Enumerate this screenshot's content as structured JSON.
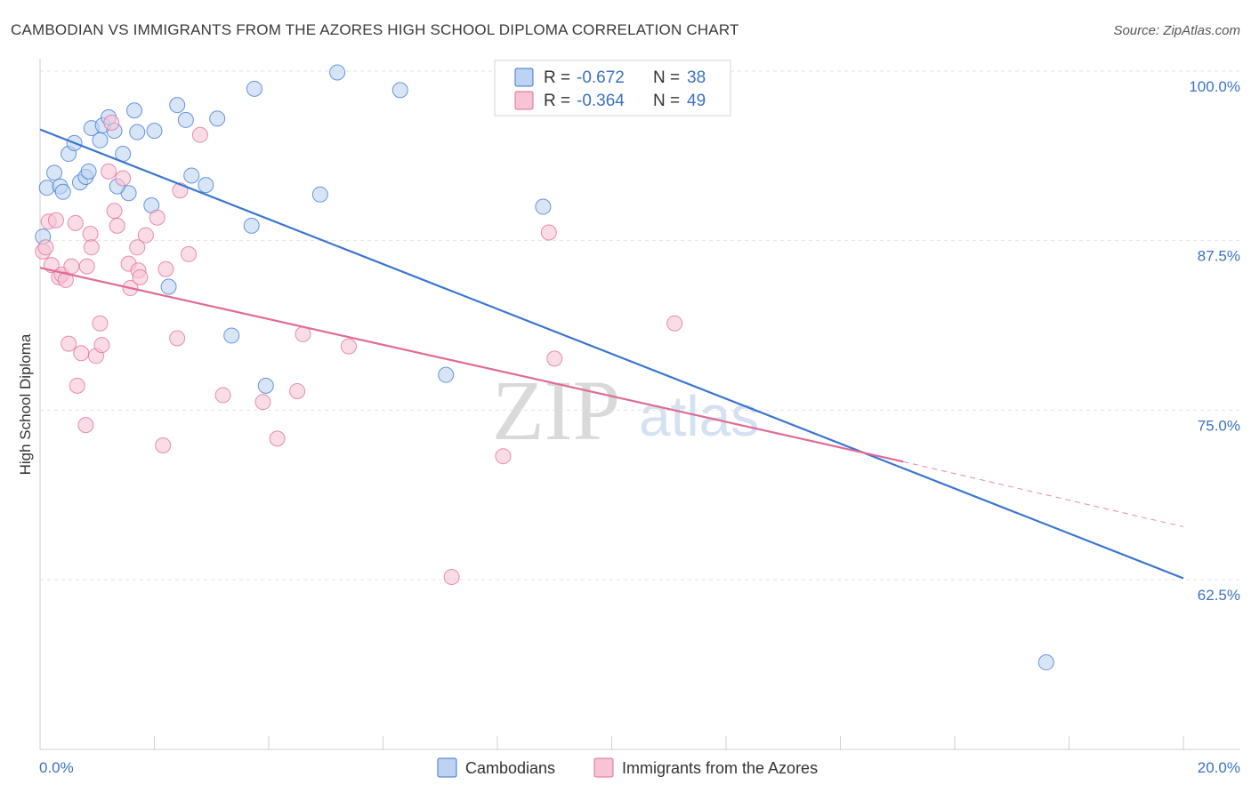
{
  "title": "CAMBODIAN VS IMMIGRANTS FROM THE AZORES HIGH SCHOOL DIPLOMA CORRELATION CHART",
  "source": "Source: ZipAtlas.com",
  "watermark": {
    "zip": "ZIP",
    "atlas": "atlas"
  },
  "colors": {
    "blue": "#3a76d2",
    "blue_fill": "#bcd3f2",
    "pink": "#e06b97",
    "pink_fill": "#f7c4d5",
    "tick_text": "#3a72c4",
    "grid": "#e2e2e2"
  },
  "legend": {
    "rows": [
      {
        "r_label": "R =",
        "r_value": "-0.672",
        "n_label": "N =",
        "n_value": "38"
      },
      {
        "r_label": "R =",
        "r_value": "-0.364",
        "n_label": "N =",
        "n_value": "49"
      }
    ]
  },
  "bottom_legend": [
    "Cambodians",
    "Immigrants from the Azores"
  ],
  "chart_data": {
    "type": "scatter",
    "title": "CAMBODIAN VS IMMIGRANTS FROM THE AZORES HIGH SCHOOL DIPLOMA CORRELATION CHART",
    "xlabel": "",
    "ylabel": "High School Diploma",
    "xlim": [
      0,
      20
    ],
    "ylim": [
      52.0,
      100.5
    ],
    "x_tick_labels": [
      "0.0%",
      "20.0%"
    ],
    "y_ticks": [
      62.5,
      75.0,
      87.5,
      100.0
    ],
    "y_tick_labels": [
      "62.5%",
      "75.0%",
      "87.5%",
      "100.0%"
    ],
    "grid": true,
    "legend_placement": "top-center",
    "series": [
      {
        "name": "Cambodians",
        "r": -0.672,
        "n": 38,
        "trend": {
          "x0": 0.0,
          "y0": 95.7,
          "x1": 20.0,
          "y1": 62.6,
          "dashed_to": null
        },
        "points": [
          [
            0.05,
            87.8
          ],
          [
            0.12,
            91.4
          ],
          [
            0.25,
            92.5
          ],
          [
            0.35,
            91.5
          ],
          [
            0.4,
            91.1
          ],
          [
            0.5,
            93.9
          ],
          [
            0.6,
            94.7
          ],
          [
            0.7,
            91.8
          ],
          [
            0.8,
            92.2
          ],
          [
            0.85,
            92.6
          ],
          [
            0.9,
            95.8
          ],
          [
            1.05,
            94.9
          ],
          [
            1.1,
            96.0
          ],
          [
            1.2,
            96.6
          ],
          [
            1.3,
            95.6
          ],
          [
            1.45,
            93.9
          ],
          [
            1.55,
            91.0
          ],
          [
            1.65,
            97.1
          ],
          [
            1.7,
            95.5
          ],
          [
            1.35,
            91.5
          ],
          [
            1.95,
            90.1
          ],
          [
            2.0,
            95.6
          ],
          [
            2.25,
            84.1
          ],
          [
            2.4,
            97.5
          ],
          [
            2.55,
            96.4
          ],
          [
            2.65,
            92.3
          ],
          [
            2.9,
            91.6
          ],
          [
            3.1,
            96.5
          ],
          [
            3.35,
            80.5
          ],
          [
            3.7,
            88.6
          ],
          [
            3.75,
            98.7
          ],
          [
            3.95,
            76.8
          ],
          [
            4.9,
            90.9
          ],
          [
            5.2,
            99.9
          ],
          [
            6.3,
            98.6
          ],
          [
            7.1,
            77.6
          ],
          [
            8.8,
            90.0
          ],
          [
            17.6,
            56.4
          ]
        ]
      },
      {
        "name": "Immigrants from the Azores",
        "r": -0.364,
        "n": 49,
        "trend": {
          "x0": 0.0,
          "y0": 85.5,
          "x1": 15.1,
          "y1": 71.2,
          "dashed_to": [
            20.0,
            66.4
          ]
        },
        "points": [
          [
            0.05,
            86.7
          ],
          [
            0.1,
            87.0
          ],
          [
            0.15,
            88.9
          ],
          [
            0.2,
            85.7
          ],
          [
            0.28,
            89.0
          ],
          [
            0.33,
            84.8
          ],
          [
            0.38,
            85.0
          ],
          [
            0.45,
            84.6
          ],
          [
            0.5,
            79.9
          ],
          [
            0.55,
            85.6
          ],
          [
            0.62,
            88.8
          ],
          [
            0.65,
            76.8
          ],
          [
            0.72,
            79.2
          ],
          [
            0.8,
            73.9
          ],
          [
            0.82,
            85.6
          ],
          [
            0.88,
            88.0
          ],
          [
            0.9,
            87.0
          ],
          [
            0.98,
            79.0
          ],
          [
            1.05,
            81.4
          ],
          [
            1.08,
            79.8
          ],
          [
            1.2,
            92.6
          ],
          [
            1.25,
            96.2
          ],
          [
            1.3,
            89.7
          ],
          [
            1.35,
            88.6
          ],
          [
            1.45,
            92.1
          ],
          [
            1.55,
            85.8
          ],
          [
            1.58,
            84.0
          ],
          [
            1.7,
            87.0
          ],
          [
            1.72,
            85.3
          ],
          [
            1.75,
            84.8
          ],
          [
            1.85,
            87.9
          ],
          [
            2.05,
            89.2
          ],
          [
            2.15,
            72.4
          ],
          [
            2.2,
            85.4
          ],
          [
            2.4,
            80.3
          ],
          [
            2.45,
            91.2
          ],
          [
            2.6,
            86.5
          ],
          [
            2.8,
            95.3
          ],
          [
            3.2,
            76.1
          ],
          [
            3.9,
            75.6
          ],
          [
            4.15,
            72.9
          ],
          [
            4.5,
            76.4
          ],
          [
            4.6,
            80.6
          ],
          [
            5.4,
            79.7
          ],
          [
            7.2,
            62.7
          ],
          [
            8.1,
            71.6
          ],
          [
            8.9,
            88.1
          ],
          [
            9.0,
            78.8
          ],
          [
            11.1,
            81.4
          ]
        ]
      }
    ]
  }
}
